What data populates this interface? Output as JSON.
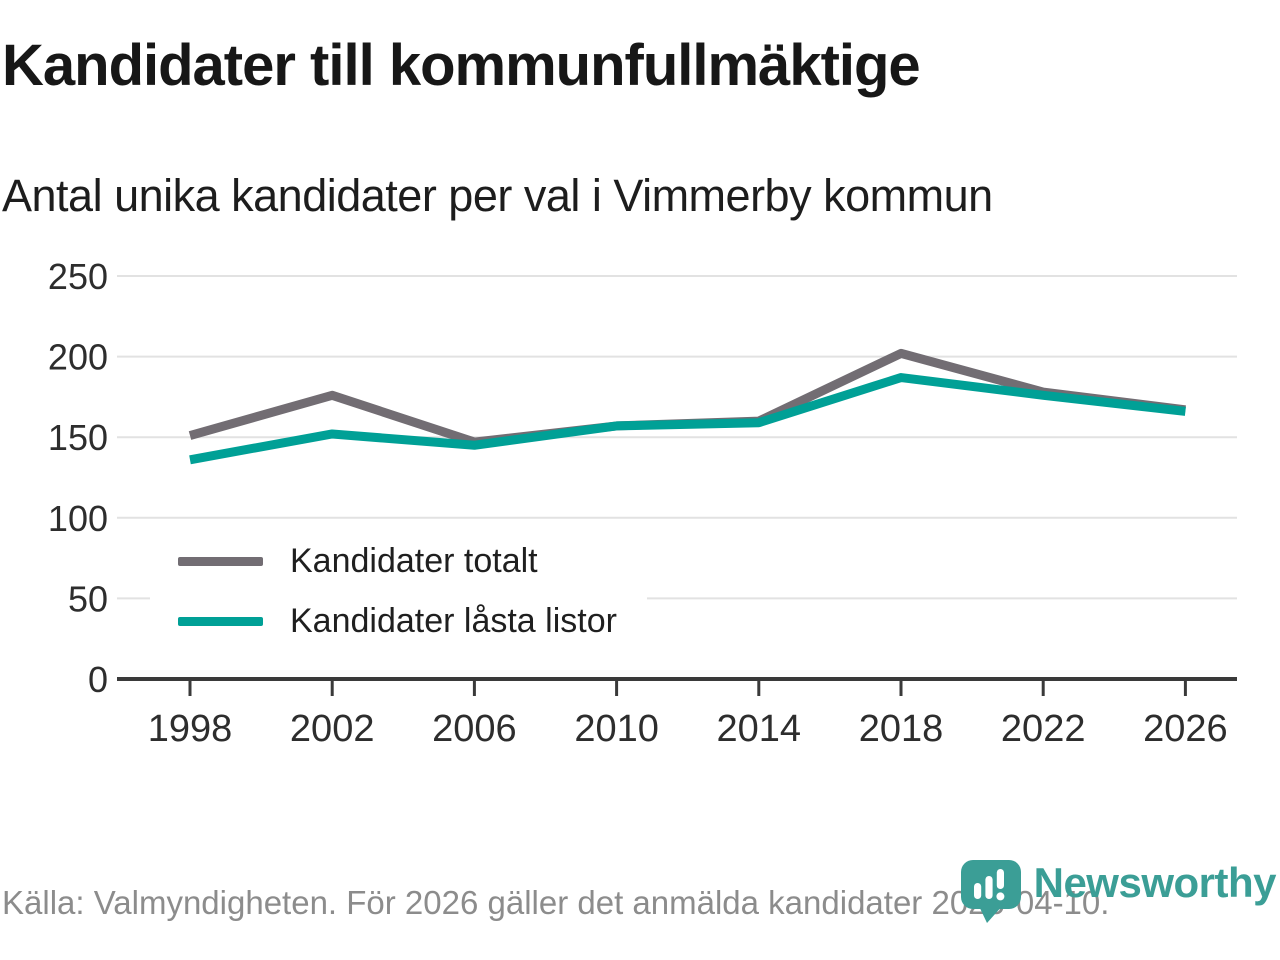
{
  "title": "Kandidater till kommunfullmäktige",
  "subtitle": "Antal unika kandidater per val i Vimmerby kommun",
  "footer": {
    "source": "Källa: Valmyndigheten. För 2026 gäller det anmälda kandidater 2026-04-10."
  },
  "logo": {
    "brand": "Newsworthy",
    "icon": "bar-chart-pin-icon",
    "color": "#3b9e96"
  },
  "colors": {
    "grid": "#e2e2e2",
    "axis": "#3a3a3a",
    "tick_text": "#2d2d2d",
    "total_line": "#726d73",
    "locked_line": "#00a096",
    "footer_text": "#8c8c8c"
  },
  "chart_data": {
    "type": "line",
    "x": [
      1998,
      2002,
      2006,
      2010,
      2014,
      2018,
      2022,
      2026
    ],
    "series": [
      {
        "name": "Kandidater totalt",
        "color": "#726d73",
        "values": [
          151,
          176,
          147,
          157,
          160,
          202,
          178,
          167
        ]
      },
      {
        "name": "Kandidater låsta listor",
        "color": "#00a096",
        "values": [
          136,
          152,
          145,
          157,
          159,
          187,
          176,
          166
        ]
      }
    ],
    "title": "Kandidater till kommunfullmäktige",
    "subtitle": "Antal unika kandidater per val i Vimmerby kommun",
    "xlabel": "",
    "ylabel": "",
    "ylim": [
      0,
      250
    ],
    "yticks": [
      0,
      50,
      100,
      150,
      200,
      250
    ],
    "grid": true,
    "legend_position": "inside-lower-left"
  }
}
